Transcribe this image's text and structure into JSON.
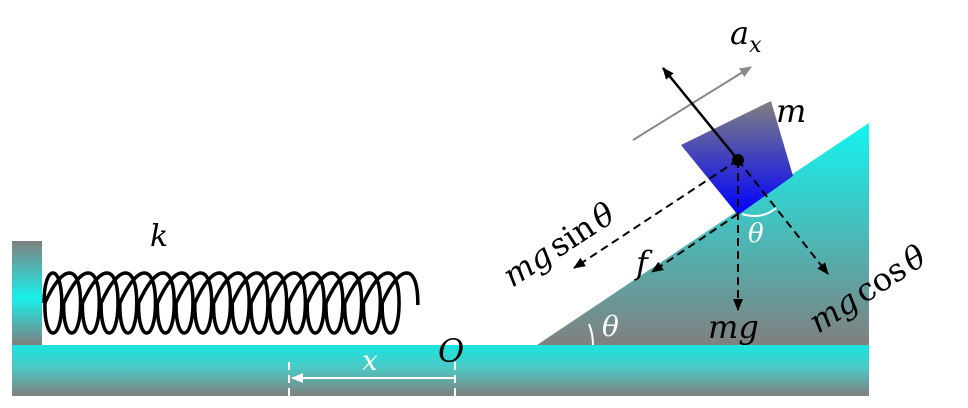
{
  "labels": {
    "spring_constant": "k",
    "origin": "O",
    "displacement": "x",
    "mass": "m",
    "acceleration": "a",
    "acceleration_subscript": "x",
    "friction": "f",
    "weight": "mg",
    "incline_angle": "θ",
    "block_angle": "θ",
    "component_parallel_prefix": "mg",
    "component_parallel_func": "sin",
    "component_parallel_angle": "θ",
    "component_normal_prefix": "mg",
    "component_normal_func": "cos",
    "component_normal_angle": "θ"
  },
  "colors": {
    "ground_mid": "#19e6e0",
    "ground_edge": "#7f7f7f",
    "incline_top": "#12f4f0",
    "incline_bottom": "#808080",
    "block_top": "#808080",
    "block_bottom": "#0000ff",
    "spring": "#000000",
    "acceleration_arrow": "#888888",
    "force_arrows": "#000000"
  },
  "icons": {
    "spring": "coil-spring-icon",
    "block": "block-icon"
  }
}
